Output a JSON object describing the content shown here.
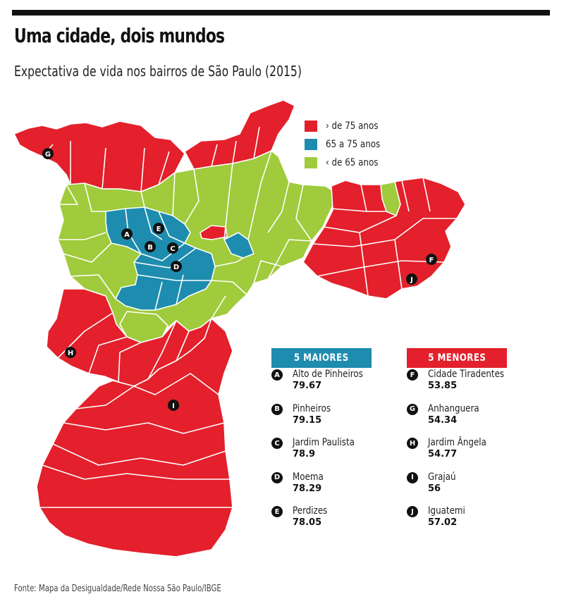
{
  "header": {
    "title": "Uma cidade, dois mundos",
    "subtitle": "Expectativa de vida nos bairros de São Paulo (2015)"
  },
  "colors": {
    "high": "#e3202b",
    "mid": "#1e8cae",
    "low": "#9fcb3c",
    "marker": "#111111",
    "border": "#ffffff"
  },
  "legend": [
    {
      "label": "› de 75 anos",
      "color": "#e3202b"
    },
    {
      "label": "65 a 75 anos",
      "color": "#1e8cae"
    },
    {
      "label": "‹ de 65 anos",
      "color": "#9fcb3c"
    }
  ],
  "map_markers": [
    "A",
    "B",
    "C",
    "D",
    "E",
    "F",
    "G",
    "H",
    "I",
    "J"
  ],
  "panels": {
    "maiores": {
      "title": "5 MAIORES",
      "items": [
        {
          "letter": "A",
          "name": "Alto de Pinheiros",
          "value": "79.67"
        },
        {
          "letter": "B",
          "name": "Pinheiros",
          "value": "79.15"
        },
        {
          "letter": "C",
          "name": "Jardim Paulista",
          "value": "78.9"
        },
        {
          "letter": "D",
          "name": "Moema",
          "value": "78.29"
        },
        {
          "letter": "E",
          "name": "Perdizes",
          "value": "78.05"
        }
      ]
    },
    "menores": {
      "title": "5 MENORES",
      "items": [
        {
          "letter": "F",
          "name": "Cidade Tiradentes",
          "value": "53.85"
        },
        {
          "letter": "G",
          "name": "Anhanguera",
          "value": "54.34"
        },
        {
          "letter": "H",
          "name": "Jardim Ângela",
          "value": "54.77"
        },
        {
          "letter": "I",
          "name": "Grajaú",
          "value": "56"
        },
        {
          "letter": "J",
          "name": "Iguatemi",
          "value": "57.02"
        }
      ]
    }
  },
  "source": "Fonte: Mapa da Desigualdade/Rede Nossa São Paulo/IBGE"
}
